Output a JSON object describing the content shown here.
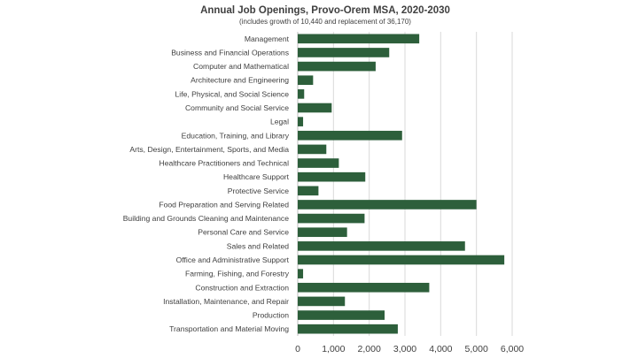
{
  "chart_data": {
    "type": "bar",
    "orientation": "horizontal",
    "title": "Annual Job Openings, Provo-Orem MSA, 2020-2030",
    "subtitle": "(includes growth of 10,440 and replacement of 36,170)",
    "categories": [
      "Management",
      "Business and Financial Operations",
      "Computer and Mathematical",
      "Architecture and Engineering",
      "Life, Physical, and Social Science",
      "Community and Social Service",
      "Legal",
      "Education, Training, and Library",
      "Arts, Design, Entertainment, Sports, and Media",
      "Healthcare Practitioners and Technical",
      "Healthcare Support",
      "Protective Service",
      "Food Preparation and Serving Related",
      "Building and Grounds Cleaning and Maintenance",
      "Personal Care and Service",
      "Sales and Related",
      "Office and Administrative Support",
      "Farming, Fishing, and Forestry",
      "Construction and Extraction",
      "Installation, Maintenance, and Repair",
      "Production",
      "Transportation and Material Moving"
    ],
    "values": [
      3400,
      2560,
      2180,
      430,
      180,
      950,
      150,
      2920,
      800,
      1150,
      1890,
      580,
      5000,
      1870,
      1380,
      4680,
      5780,
      150,
      3680,
      1320,
      2430,
      2800
    ],
    "xlim": [
      0,
      6000
    ],
    "xticks": [
      0,
      1000,
      2000,
      3000,
      4000,
      5000,
      6000
    ],
    "xtick_labels": [
      "0",
      "1,000",
      "2,000",
      "3,000",
      "4,000",
      "5,000",
      "6,000"
    ],
    "grid": true,
    "bar_color": "#2d5f3b",
    "grid_color": "#d9d9d9"
  }
}
